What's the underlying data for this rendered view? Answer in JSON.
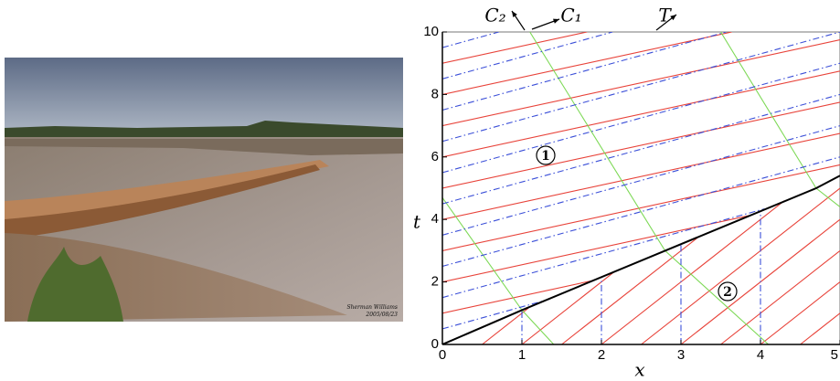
{
  "photo": {
    "credit_name": "Sherman Williams",
    "credit_date": "2005/08/23"
  },
  "chart_data": {
    "type": "line",
    "x_label": "x",
    "y_label": "t",
    "xlim": [
      0,
      5
    ],
    "ylim": [
      0,
      10
    ],
    "xticks": [
      0,
      1,
      2,
      3,
      4,
      5
    ],
    "yticks": [
      0,
      2,
      4,
      6,
      8,
      10
    ],
    "annotations": [
      "1",
      "2"
    ],
    "series": [
      {
        "name": "C₁",
        "color": "#e8433a",
        "dash": "solid",
        "x": [
          0,
          1.92,
          null,
          0,
          3.85,
          null,
          0,
          5,
          null,
          0,
          5,
          null,
          0,
          5,
          null,
          0,
          5,
          null,
          0,
          5,
          null,
          0,
          3.64,
          null,
          0,
          1.82,
          null,
          0.5,
          1.08,
          null,
          1,
          2.15,
          null,
          1.5,
          3.23,
          null,
          2,
          4.3,
          null,
          2.5,
          5,
          null,
          3,
          5,
          null,
          3.5,
          5,
          null,
          4,
          5,
          null,
          4.5,
          5
        ],
        "values": [
          1,
          2.06,
          null,
          2,
          4.12,
          null,
          3,
          5.75,
          null,
          4,
          6.75,
          null,
          5,
          7.75,
          null,
          6,
          8.75,
          null,
          7,
          9.75,
          null,
          8,
          10,
          null,
          9,
          10,
          null,
          0,
          1.16,
          null,
          0,
          2.3,
          null,
          0,
          3.46,
          null,
          0,
          4.6,
          null,
          0,
          5,
          null,
          0,
          4,
          null,
          0,
          3,
          null,
          0,
          2,
          null,
          0,
          1
        ]
      },
      {
        "name": "C₂",
        "color": "#7ed957",
        "dash": "solid",
        "x": [
          0,
          1,
          1.4,
          null,
          1.1,
          2.8,
          4.1,
          null,
          3.5,
          4.7,
          5
        ],
        "values": [
          4.7,
          1.1,
          0,
          null,
          10,
          3,
          0,
          null,
          10,
          5,
          4.4
        ]
      },
      {
        "name": "T",
        "color": "#3b4fd8",
        "dash": "dashdot",
        "x": [
          0,
          1.35,
          null,
          0,
          4.05,
          null,
          0,
          5,
          null,
          0,
          5,
          null,
          0,
          5,
          null,
          0,
          5,
          null,
          0,
          5,
          null,
          0,
          3.57,
          null,
          0,
          2.14,
          null,
          0,
          0.71,
          null,
          1,
          1,
          null,
          2,
          2,
          null,
          3,
          3,
          null,
          4,
          4
        ],
        "values": [
          0.5,
          1.45,
          null,
          1.5,
          4.34,
          null,
          2.5,
          6,
          null,
          3.5,
          7,
          null,
          4.5,
          8,
          null,
          5.5,
          9,
          null,
          6.5,
          10,
          null,
          7.5,
          10,
          null,
          8.5,
          10,
          null,
          9.5,
          10,
          null,
          0,
          1.07,
          null,
          0,
          2.14,
          null,
          0,
          3.21,
          null,
          0,
          4.28
        ]
      },
      {
        "color": "#000000",
        "dash": "solid",
        "x": [
          0,
          1,
          2.8,
          4.7,
          5
        ],
        "values": [
          0,
          1.1,
          3,
          5,
          5.4
        ]
      }
    ]
  }
}
